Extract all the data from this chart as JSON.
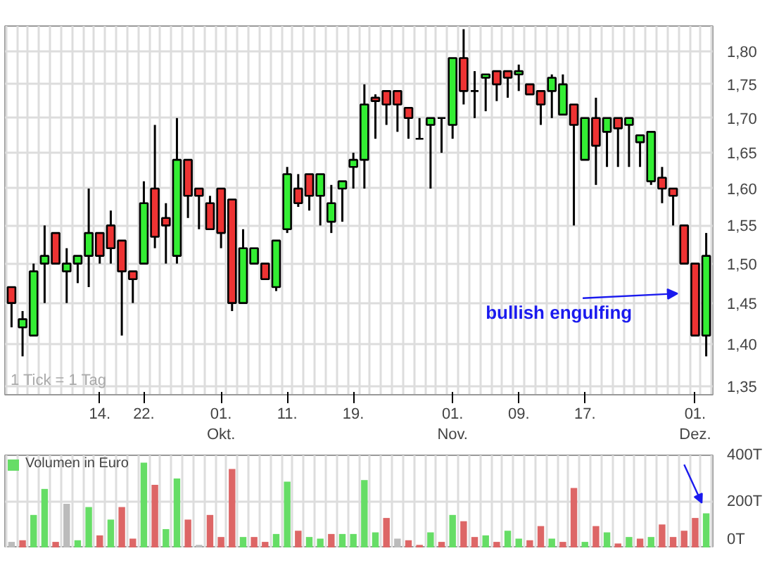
{
  "chart_data": [
    {
      "type": "candlestick",
      "log": true,
      "grid": true,
      "categories": [
        null,
        null,
        null,
        null,
        null,
        null,
        null,
        null,
        "14.",
        null,
        null,
        null,
        "22.",
        null,
        null,
        null,
        null,
        null,
        null,
        "01.\nOkt.",
        null,
        null,
        null,
        null,
        null,
        "11.",
        null,
        null,
        null,
        null,
        null,
        "19.",
        null,
        null,
        null,
        null,
        null,
        null,
        null,
        null,
        "01.\nNov.",
        null,
        null,
        null,
        null,
        null,
        "09.",
        null,
        null,
        null,
        null,
        null,
        "17.",
        null,
        null,
        null,
        null,
        null,
        null,
        null,
        null,
        null,
        "01.\nDez.",
        null
      ],
      "ohlc": [
        [
          1.47,
          1.47,
          1.42,
          1.45
        ],
        [
          1.42,
          1.44,
          1.385,
          1.43
        ],
        [
          1.41,
          1.5,
          1.41,
          1.49
        ],
        [
          1.5,
          1.55,
          1.45,
          1.51
        ],
        [
          1.54,
          1.54,
          1.5,
          1.5
        ],
        [
          1.49,
          1.52,
          1.45,
          1.5
        ],
        [
          1.5,
          1.51,
          1.475,
          1.51
        ],
        [
          1.51,
          1.6,
          1.47,
          1.54
        ],
        [
          1.54,
          1.54,
          1.5,
          1.51
        ],
        [
          1.55,
          1.57,
          1.5,
          1.52
        ],
        [
          1.53,
          1.53,
          1.41,
          1.49
        ],
        [
          1.49,
          1.49,
          1.45,
          1.48
        ],
        [
          1.5,
          1.61,
          1.5,
          1.58
        ],
        [
          1.6,
          1.69,
          1.52,
          1.535
        ],
        [
          1.56,
          1.58,
          1.5,
          1.55
        ],
        [
          1.51,
          1.7,
          1.5,
          1.64
        ],
        [
          1.64,
          1.64,
          1.56,
          1.59
        ],
        [
          1.6,
          1.6,
          1.545,
          1.59
        ],
        [
          1.58,
          1.59,
          1.545,
          1.545
        ],
        [
          1.6,
          1.6,
          1.52,
          1.54
        ],
        [
          1.585,
          1.585,
          1.44,
          1.45
        ],
        [
          1.45,
          1.545,
          1.45,
          1.52
        ],
        [
          1.5,
          1.52,
          1.5,
          1.52
        ],
        [
          1.5,
          1.5,
          1.48,
          1.48
        ],
        [
          1.47,
          1.53,
          1.465,
          1.53
        ],
        [
          1.545,
          1.63,
          1.54,
          1.62
        ],
        [
          1.6,
          1.62,
          1.575,
          1.58
        ],
        [
          1.62,
          1.62,
          1.57,
          1.59
        ],
        [
          1.59,
          1.62,
          1.55,
          1.62
        ],
        [
          1.555,
          1.605,
          1.54,
          1.58
        ],
        [
          1.6,
          1.61,
          1.555,
          1.61
        ],
        [
          1.63,
          1.65,
          1.6,
          1.64
        ],
        [
          1.64,
          1.75,
          1.6,
          1.72
        ],
        [
          1.73,
          1.735,
          1.67,
          1.725
        ],
        [
          1.74,
          1.74,
          1.69,
          1.72
        ],
        [
          1.74,
          1.74,
          1.68,
          1.72
        ],
        [
          1.715,
          1.715,
          1.67,
          1.7
        ],
        [
          1.67,
          1.7,
          1.67,
          1.67
        ],
        [
          1.69,
          1.7,
          1.6,
          1.7
        ],
        [
          1.7,
          1.7,
          1.65,
          1.7
        ],
        [
          1.69,
          1.79,
          1.67,
          1.79
        ],
        [
          1.79,
          1.835,
          1.72,
          1.74
        ],
        [
          1.74,
          1.77,
          1.7,
          1.74
        ],
        [
          1.76,
          1.765,
          1.71,
          1.765
        ],
        [
          1.77,
          1.77,
          1.725,
          1.75
        ],
        [
          1.77,
          1.77,
          1.73,
          1.76
        ],
        [
          1.765,
          1.78,
          1.74,
          1.77
        ],
        [
          1.75,
          1.75,
          1.735,
          1.735
        ],
        [
          1.74,
          1.74,
          1.69,
          1.72
        ],
        [
          1.74,
          1.765,
          1.7,
          1.76
        ],
        [
          1.705,
          1.765,
          1.705,
          1.75
        ],
        [
          1.72,
          1.72,
          1.55,
          1.69
        ],
        [
          1.64,
          1.7,
          1.64,
          1.7
        ],
        [
          1.7,
          1.73,
          1.605,
          1.66
        ],
        [
          1.68,
          1.7,
          1.63,
          1.7
        ],
        [
          1.7,
          1.7,
          1.63,
          1.685
        ],
        [
          1.69,
          1.7,
          1.63,
          1.7
        ],
        [
          1.665,
          1.675,
          1.63,
          1.675
        ],
        [
          1.61,
          1.68,
          1.605,
          1.68
        ],
        [
          1.615,
          1.63,
          1.58,
          1.6
        ],
        [
          1.6,
          1.6,
          1.55,
          1.59
        ],
        [
          1.55,
          1.55,
          1.5,
          1.5
        ],
        [
          1.5,
          1.5,
          1.41,
          1.41
        ],
        [
          1.41,
          1.54,
          1.385,
          1.51
        ]
      ],
      "ylim": [
        1.34,
        1.84
      ],
      "yticks": [
        {
          "value": 1.35,
          "label": "1,35"
        },
        {
          "value": 1.4,
          "label": "1,40"
        },
        {
          "value": 1.45,
          "label": "1,45"
        },
        {
          "value": 1.5,
          "label": "1,50"
        },
        {
          "value": 1.55,
          "label": "1,55"
        },
        {
          "value": 1.6,
          "label": "1,60"
        },
        {
          "value": 1.65,
          "label": "1,65"
        },
        {
          "value": 1.7,
          "label": "1,70"
        },
        {
          "value": 1.75,
          "label": "1,75"
        },
        {
          "value": 1.8,
          "label": "1,80"
        }
      ],
      "annotations": [
        "1 Tick = 1 Tag",
        "bullish engulfing"
      ]
    },
    {
      "type": "bar",
      "grid": true,
      "tick_labels": "y",
      "legend": "top left",
      "categories": [
        null,
        null,
        null,
        null,
        null,
        null,
        null,
        null,
        null,
        null,
        null,
        null,
        null,
        null,
        null,
        null,
        null,
        null,
        null,
        null,
        null,
        null,
        null,
        null,
        null,
        null,
        null,
        null,
        null,
        null,
        null,
        null,
        null,
        null,
        null,
        null,
        null,
        null,
        null,
        null,
        null,
        null,
        null,
        null,
        null,
        null,
        null,
        null,
        null,
        null,
        null,
        null,
        null,
        null,
        null,
        null,
        null,
        null,
        null,
        null,
        null,
        null,
        null,
        null
      ],
      "series": [
        {
          "name": "Volumen in Euro",
          "color": "#66dd66",
          "values": [
            27,
            34,
            143,
            255,
            27,
            191,
            34,
            177,
            55,
            123,
            177,
            41,
            368,
            273,
            82,
            300,
            123,
            14,
            143,
            48,
            341,
            48,
            48,
            27,
            61,
            286,
            75,
            48,
            41,
            61,
            61,
            61,
            293,
            68,
            130,
            41,
            34,
            14,
            68,
            27,
            143,
            116,
            48,
            55,
            27,
            75,
            41,
            34,
            95,
            41,
            27,
            259,
            27,
            95,
            68,
            20,
            48,
            41,
            48,
            102,
            48,
            75,
            130,
            150
          ],
          "colors": [
            "#bbbbbb",
            "#dd6666",
            "#66dd66",
            "#66dd66",
            "#dd6666",
            "#bbbbbb",
            "#66dd66",
            "#66dd66",
            "#dd6666",
            "#66dd66",
            "#dd6666",
            "#dd6666",
            "#66dd66",
            "#dd6666",
            "#66dd66",
            "#66dd66",
            "#dd6666",
            "#bbbbbb",
            "#dd6666",
            "#dd6666",
            "#dd6666",
            "#66dd66",
            "#dd6666",
            "#dd6666",
            "#66dd66",
            "#66dd66",
            "#dd6666",
            "#66dd66",
            "#66dd66",
            "#dd6666",
            "#66dd66",
            "#66dd66",
            "#66dd66",
            "#66dd66",
            "#dd6666",
            "#bbbbbb",
            "#dd6666",
            "#dd6666",
            "#66dd66",
            "#dd6666",
            "#66dd66",
            "#dd6666",
            "#dd6666",
            "#66dd66",
            "#dd6666",
            "#66dd66",
            "#66dd66",
            "#dd6666",
            "#dd6666",
            "#66dd66",
            "#dd6666",
            "#dd6666",
            "#66dd66",
            "#dd6666",
            "#66dd66",
            "#dd6666",
            "#66dd66",
            "#dd6666",
            "#66dd66",
            "#dd6666",
            "#dd6666",
            "#dd6666",
            "#dd6666",
            "#66dd66"
          ]
        }
      ],
      "ylim": [
        0,
        400
      ],
      "yticks": [
        {
          "value": 0,
          "label": "0T"
        },
        {
          "value": 200,
          "label": "200T"
        },
        {
          "value": 400,
          "label": "400T"
        }
      ]
    }
  ]
}
